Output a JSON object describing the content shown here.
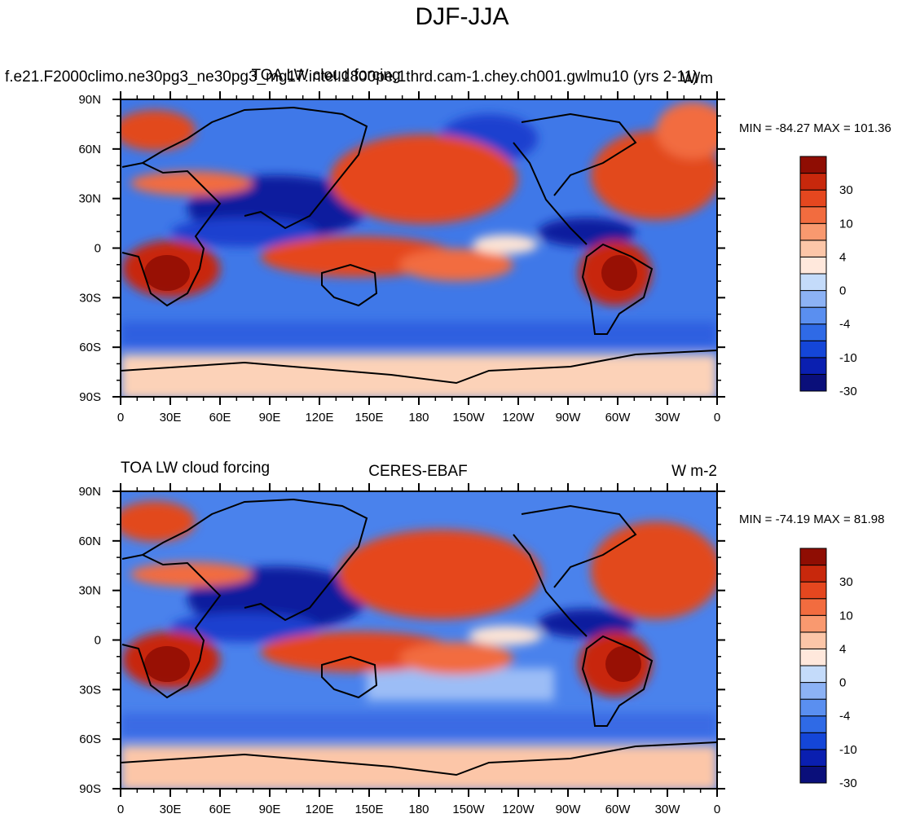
{
  "main_title": "DJF-JJA",
  "colors": {
    "levels": [
      "#0a0f7a",
      "#0a1fb0",
      "#1446d8",
      "#2f6ae6",
      "#5a8ff0",
      "#8cb2f5",
      "#c4dbfa",
      "#ffe8dc",
      "#fcc6a8",
      "#f9996f",
      "#f26c3f",
      "#e5471f",
      "#c8280c",
      "#8f0d03"
    ]
  },
  "colorbar_labels": [
    "30",
    "10",
    "4",
    "0",
    "-4",
    "-10",
    "-30"
  ],
  "panels": [
    {
      "id": "top",
      "left_title": "f.e21.F2000climo.ne30pg3_ne30pg3_mg17.intel.1800pe.1thrd.cam-1.chey.ch001.gwlmu10 (yrs 2-11)",
      "center_title": "TOA LW cloud forcing",
      "right_title": "W/m",
      "minmax": "MIN = -84.27 MAX = 101.36"
    },
    {
      "id": "bottom",
      "left_title": "TOA LW cloud forcing",
      "center_title": "CERES-EBAF",
      "right_title": "W m-2",
      "minmax": "MIN = -74.19 MAX =  81.98"
    }
  ],
  "lat_labels": [
    "90N",
    "60N",
    "30N",
    "0",
    "30S",
    "60S",
    "90S"
  ],
  "lon_labels": [
    "0",
    "30E",
    "60E",
    "90E",
    "120E",
    "150E",
    "180",
    "150W",
    "120W",
    "90W",
    "60W",
    "30W",
    "0"
  ]
}
